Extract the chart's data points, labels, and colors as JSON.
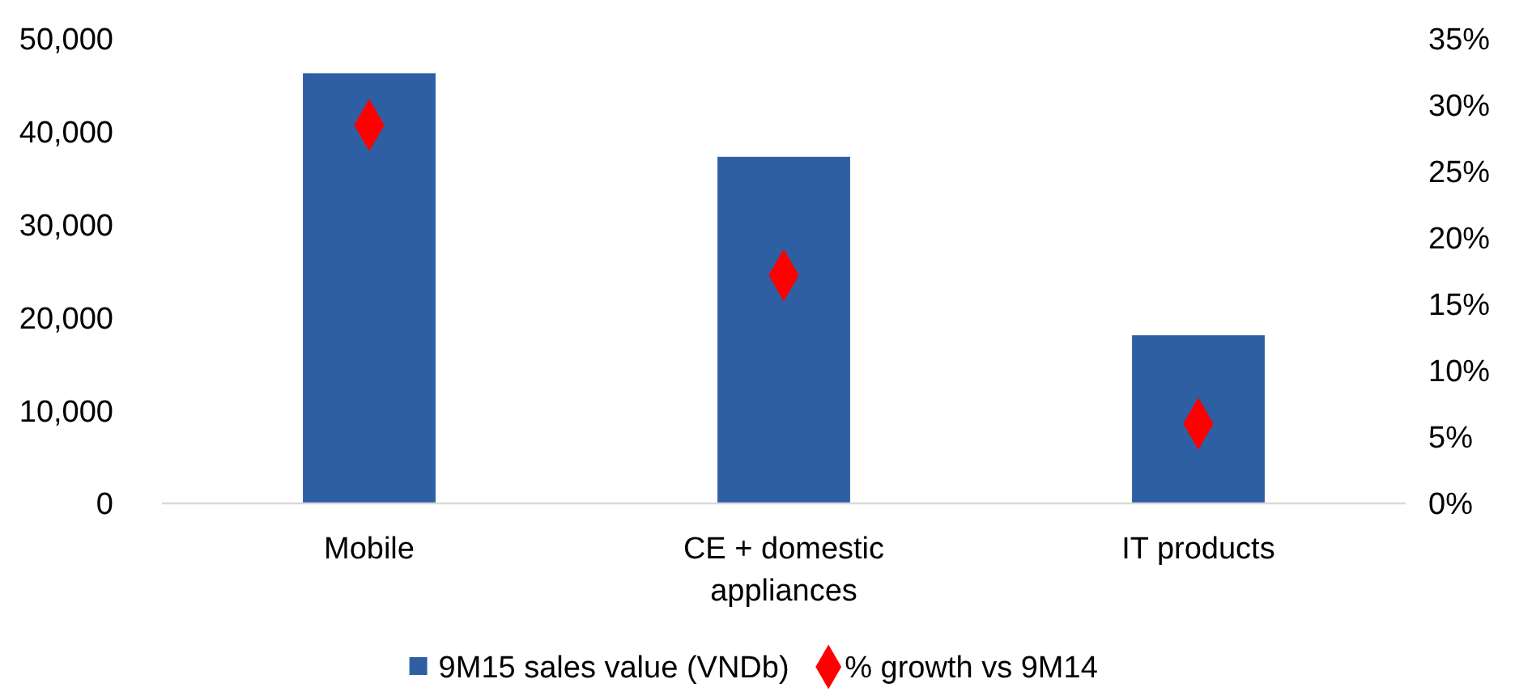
{
  "chart_data": {
    "type": "bar",
    "categories": [
      "Mobile",
      "CE + domestic appliances",
      "IT products"
    ],
    "series": [
      {
        "name": "9M15 sales value (VNDb)",
        "color": "#2e5fa3",
        "values": [
          46300,
          37300,
          18100
        ]
      },
      {
        "name": "% growth vs 9M14",
        "color": "#ff0000",
        "type": "scatter",
        "axis": "y2",
        "marker": "diamond",
        "values": [
          28.5,
          17.2,
          6.0
        ]
      }
    ],
    "ylim": [
      0,
      50000
    ],
    "yticks": [
      {
        "value": 0,
        "label": "0"
      },
      {
        "value": 10000,
        "label": "10,000"
      },
      {
        "value": 20000,
        "label": "20,000"
      },
      {
        "value": 30000,
        "label": "30,000"
      },
      {
        "value": 40000,
        "label": "40,000"
      },
      {
        "value": 50000,
        "label": "50,000"
      }
    ],
    "y2lim": [
      0,
      35
    ],
    "y2ticks": [
      {
        "value": 0,
        "label": "0%"
      },
      {
        "value": 5,
        "label": "5%"
      },
      {
        "value": 10,
        "label": "10%"
      },
      {
        "value": 15,
        "label": "15%"
      },
      {
        "value": 20,
        "label": "20%"
      },
      {
        "value": 25,
        "label": "25%"
      },
      {
        "value": 30,
        "label": "30%"
      },
      {
        "value": 35,
        "label": "35%"
      }
    ],
    "grid": false,
    "legend": "bottom"
  }
}
